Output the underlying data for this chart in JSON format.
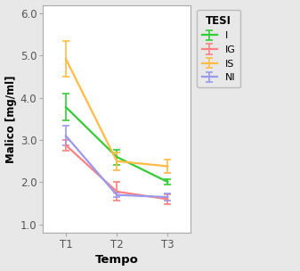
{
  "title": "",
  "xlabel": "Tempo",
  "ylabel": "Malico [mg/ml]",
  "legend_title": "TESI",
  "xticks": [
    "T1",
    "T2",
    "T3"
  ],
  "xvals": [
    1,
    2,
    3
  ],
  "ylim": [
    0.8,
    6.2
  ],
  "yticks": [
    1.0,
    2.0,
    3.0,
    4.0,
    5.0,
    6.0
  ],
  "series": {
    "I": {
      "color": "#33cc33",
      "means": [
        3.78,
        2.6,
        2.01
      ],
      "errors": [
        0.32,
        0.18,
        0.07
      ]
    },
    "IG": {
      "color": "#ff8080",
      "means": [
        2.88,
        1.78,
        1.6
      ],
      "errors": [
        0.13,
        0.22,
        0.12
      ]
    },
    "IS": {
      "color": "#ffbb44",
      "means": [
        4.92,
        2.5,
        2.38
      ],
      "errors": [
        0.42,
        0.21,
        0.15
      ]
    },
    "NI": {
      "color": "#9999ee",
      "means": [
        3.1,
        1.7,
        1.65
      ],
      "errors": [
        0.23,
        0.05,
        0.09
      ]
    }
  },
  "background_color": "#e8e8e8",
  "plot_bg_color": "#ffffff",
  "legend_order": [
    "I",
    "IG",
    "IS",
    "NI"
  ]
}
